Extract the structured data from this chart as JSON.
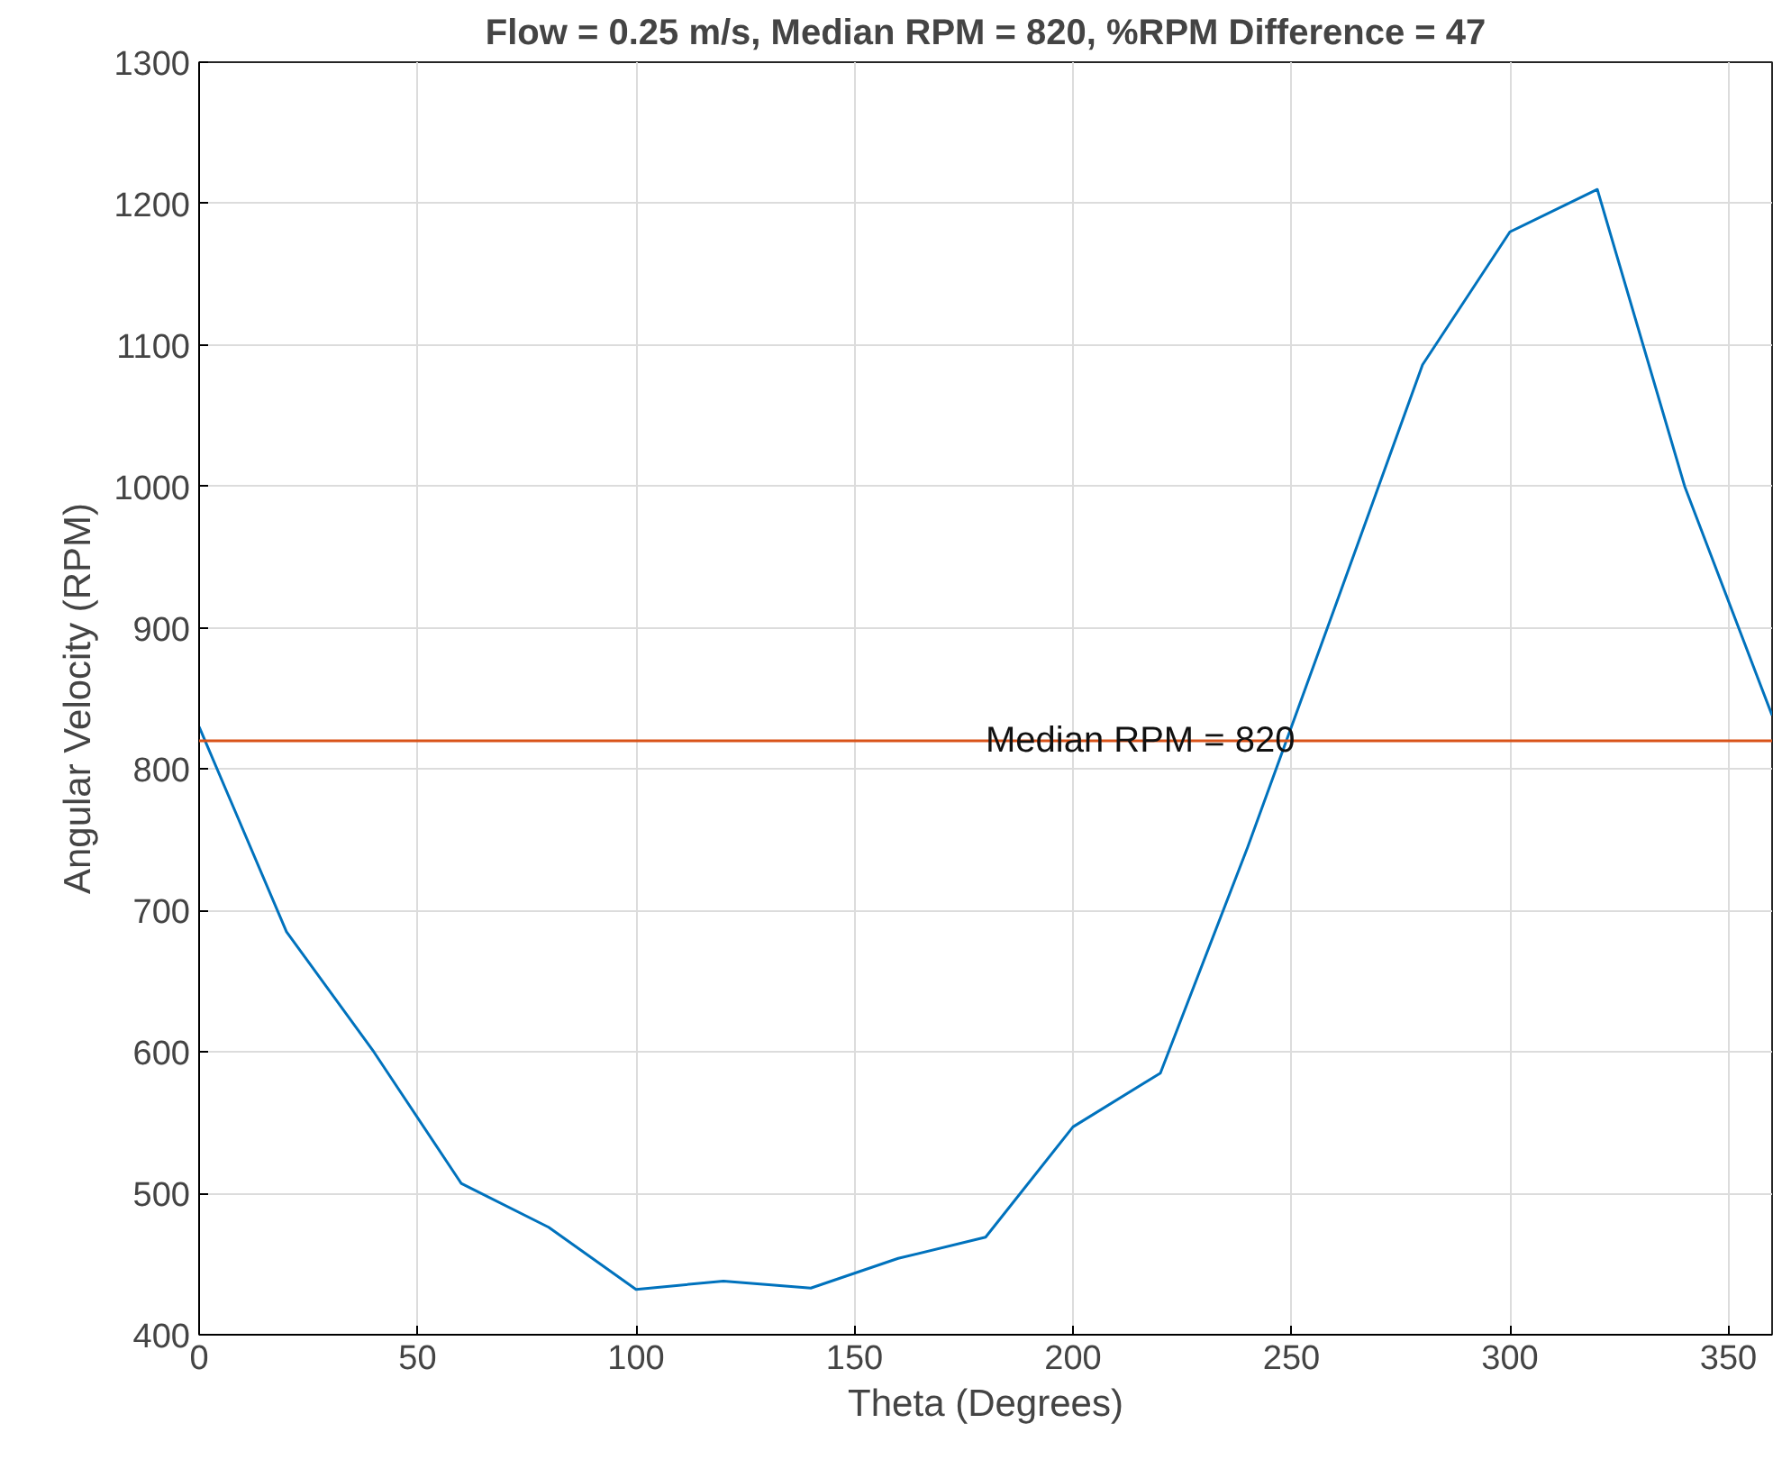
{
  "chart_data": {
    "type": "line",
    "title": "Flow = 0.25 m/s, Median RPM = 820, %RPM Difference = 47",
    "xlabel": "Theta (Degrees)",
    "ylabel": "Angular Velocity (RPM)",
    "x": [
      0,
      20,
      40,
      60,
      80,
      100,
      120,
      140,
      160,
      180,
      200,
      220,
      240,
      260,
      280,
      300,
      320,
      340,
      360
    ],
    "series": [
      {
        "color": "#0072bd",
        "values": [
          830,
          685,
          600,
          507,
          476,
          432,
          438,
          433,
          454,
          469,
          547,
          585,
          745,
          915,
          1086,
          1180,
          1210,
          1000,
          838
        ]
      }
    ],
    "xlim": [
      0,
      360
    ],
    "xticks": [
      0,
      50,
      100,
      150,
      200,
      250,
      300,
      350
    ],
    "ylim": [
      400,
      1300
    ],
    "yticks": [
      400,
      500,
      600,
      700,
      800,
      900,
      1000,
      1100,
      1200,
      1300
    ],
    "ref_lines": [
      {
        "axis": "y",
        "value": 820,
        "label": "Median RPM = 820",
        "color": "#d95319"
      }
    ],
    "grid": true,
    "marker": "none",
    "line_style": "solid"
  }
}
